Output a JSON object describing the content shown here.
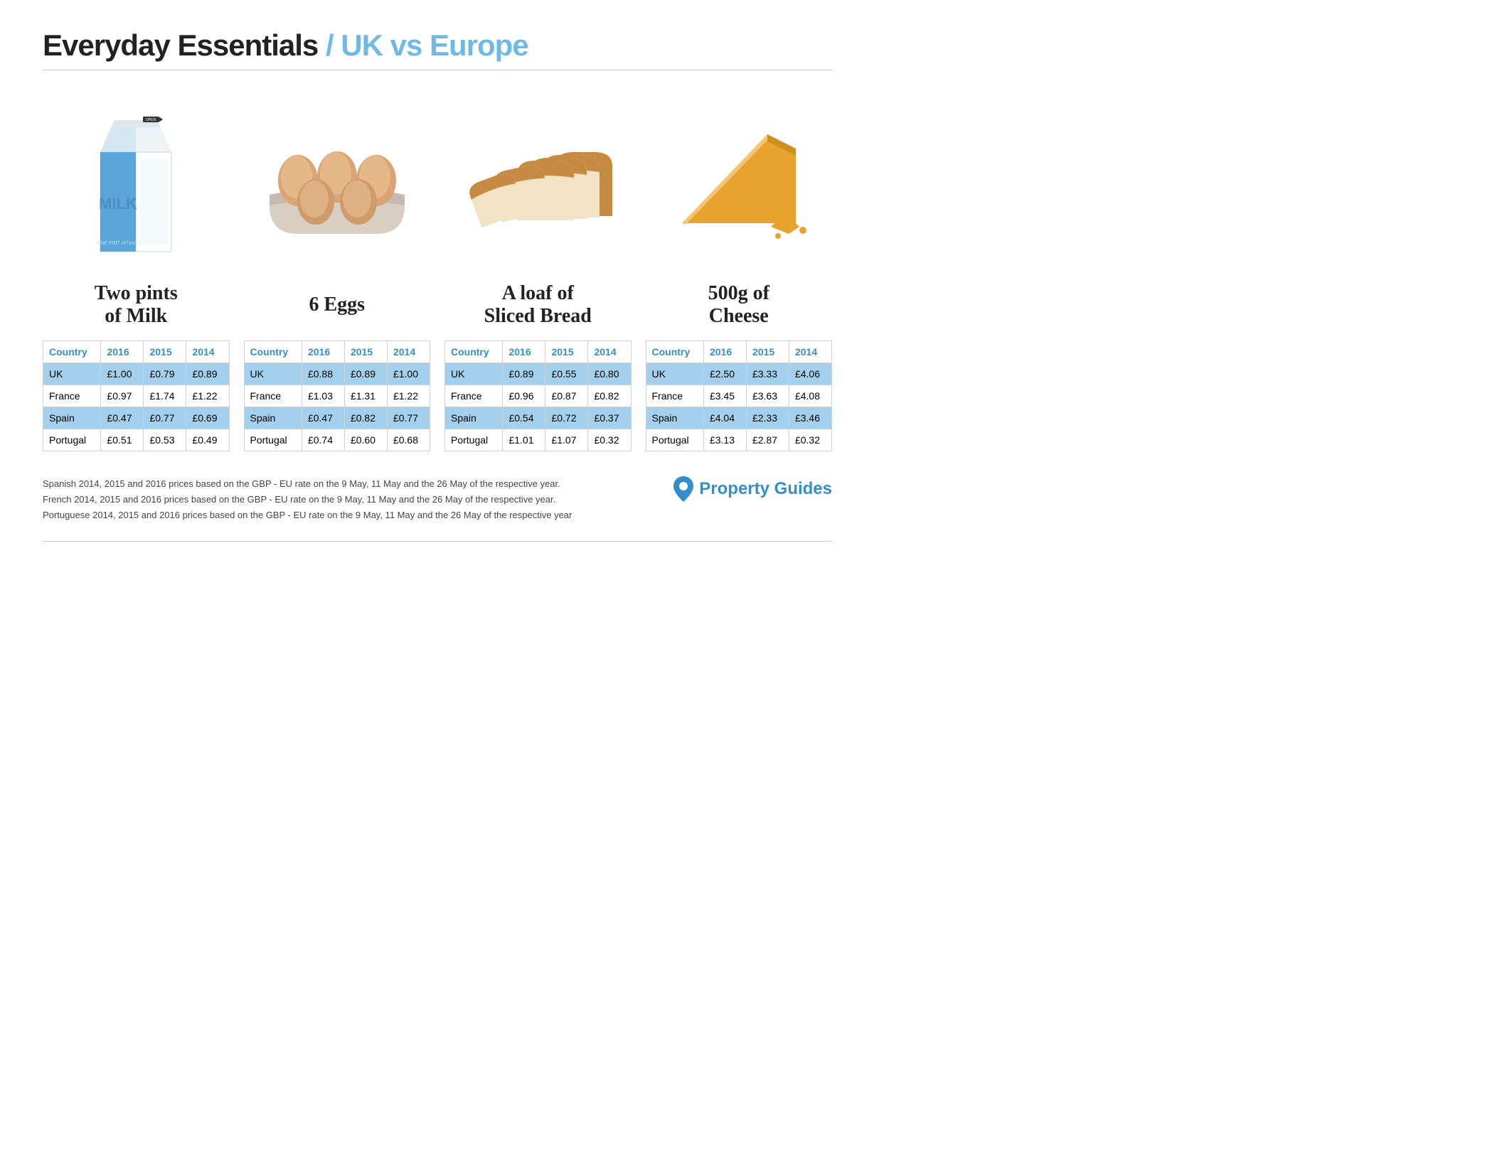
{
  "header": {
    "part1": "Everyday Essentials",
    "slash": "/",
    "part2": "UK vs Europe"
  },
  "colors": {
    "accent": "#6fb9e6",
    "header_blue": "#338fcb",
    "row_stripe": "#a3d1ed",
    "border": "#d0d0d0",
    "text": "#222222",
    "hr": "#c8c8c8"
  },
  "columns": [
    "Country",
    "2016",
    "2015",
    "2014"
  ],
  "countries": [
    "UK",
    "France",
    "Spain",
    "Portugal"
  ],
  "items": [
    {
      "title": "Two pints\nof Milk",
      "icon": "milk",
      "rows": [
        [
          "UK",
          "£1.00",
          "£0.79",
          "£0.89"
        ],
        [
          "France",
          "£0.97",
          "£1.74",
          "£1.22"
        ],
        [
          "Spain",
          "£0.47",
          "£0.77",
          "£0.69"
        ],
        [
          "Portugal",
          "£0.51",
          "£0.53",
          "£0.49"
        ]
      ]
    },
    {
      "title": "6 Eggs",
      "icon": "eggs",
      "rows": [
        [
          "UK",
          "£0.88",
          "£0.89",
          "£1.00"
        ],
        [
          "France",
          "£1.03",
          "£1.31",
          "£1.22"
        ],
        [
          "Spain",
          "£0.47",
          "£0.82",
          "£0.77"
        ],
        [
          "Portugal",
          "£0.74",
          "£0.60",
          "£0.68"
        ]
      ]
    },
    {
      "title": "A loaf of\nSliced Bread",
      "icon": "bread",
      "rows": [
        [
          "UK",
          "£0.89",
          "£0.55",
          "£0.80"
        ],
        [
          "France",
          "£0.96",
          "£0.87",
          "£0.82"
        ],
        [
          "Spain",
          "£0.54",
          "£0.72",
          "£0.37"
        ],
        [
          "Portugal",
          "£1.01",
          "£1.07",
          "£0.32"
        ]
      ]
    },
    {
      "title": "500g of\nCheese",
      "icon": "cheese",
      "rows": [
        [
          "UK",
          "£2.50",
          "£3.33",
          "£4.06"
        ],
        [
          "France",
          "£3.45",
          "£3.63",
          "£4.08"
        ],
        [
          "Spain",
          "£4.04",
          "£2.33",
          "£3.46"
        ],
        [
          "Portugal",
          "£3.13",
          "£2.87",
          "£0.32"
        ]
      ]
    }
  ],
  "notes": [
    "Spanish 2014, 2015 and 2016 prices based on the GBP - EU rate on the 9 May, 11 May and the 26 May of the respective year.",
    "French 2014, 2015 and 2016 prices based on the GBP - EU rate on the 9 May, 11 May and the 26 May of the respective year.",
    "Portuguese 2014, 2015 and 2016 prices based on the GBP - EU rate on the 9 May, 11 May and the 26 May of the respective year"
  ],
  "brand": "Property Guides"
}
